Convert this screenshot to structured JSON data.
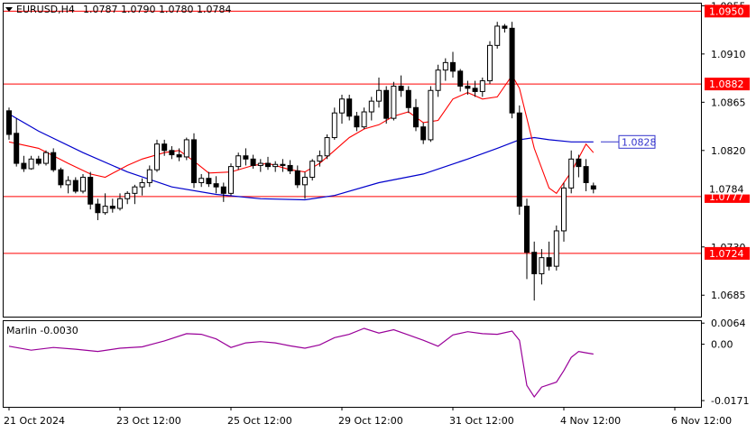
{
  "header": {
    "symbol_text": "EURUSD,H4",
    "ohlc_text": "1.0787 1.0790 1.0780 1.0784"
  },
  "colors": {
    "candle": "#000000",
    "grid_bg": "#ffffff",
    "level_line": "#ff0000",
    "fast_ma": "#ff0000",
    "slow_ma": "#0000cc",
    "oscillator": "#990099",
    "label_red_bg": "#ff0000",
    "label_blue_border": "#3333cc"
  },
  "chart_data": [
    {
      "type": "candlestick",
      "title": "EURUSD,H4",
      "subtitle": "1.0787 1.0790 1.0780 1.0784",
      "y_ticks": [
        "1.0955",
        "1.0910",
        "1.0865",
        "1.0820",
        "1.0730",
        "1.0685"
      ],
      "ylim": [
        1.0665,
        1.0957
      ],
      "x_ticks": [
        "21 Oct 2024",
        "23 Oct 12:00",
        "25 Oct 12:00",
        "29 Oct 12:00",
        "31 Oct 12:00",
        "4 Nov 12:00",
        "6 Nov 12:00"
      ],
      "x_tick_index": [
        0,
        15,
        30,
        45,
        60,
        75,
        90
      ],
      "levels": [
        {
          "value": 1.095,
          "label": "1.0950"
        },
        {
          "value": 1.0882,
          "label": "1.0882"
        },
        {
          "value": 1.0777,
          "label": "1.0777"
        },
        {
          "value": 1.0724,
          "label": "1.0724"
        }
      ],
      "ma_label": {
        "value": 1.0828,
        "label": "1.0828"
      },
      "current_price": {
        "value": 1.0784,
        "label": "1.0784"
      },
      "candles": [
        [
          1.0857,
          1.086,
          1.083,
          1.0835
        ],
        [
          1.0836,
          1.085,
          1.0805,
          1.0808
        ],
        [
          1.0808,
          1.0815,
          1.08,
          1.0803
        ],
        [
          1.0803,
          1.0815,
          1.0802,
          1.0812
        ],
        [
          1.0812,
          1.0815,
          1.0806,
          1.0808
        ],
        [
          1.0808,
          1.082,
          1.0806,
          1.0818
        ],
        [
          1.0818,
          1.0822,
          1.08,
          1.0802
        ],
        [
          1.0802,
          1.0804,
          1.0785,
          1.0788
        ],
        [
          1.0788,
          1.0796,
          1.078,
          1.0792
        ],
        [
          1.0792,
          1.0795,
          1.078,
          1.0782
        ],
        [
          1.0782,
          1.0798,
          1.078,
          1.0795
        ],
        [
          1.0795,
          1.08,
          1.0765,
          1.077
        ],
        [
          1.077,
          1.0775,
          1.0755,
          1.0762
        ],
        [
          1.0762,
          1.078,
          1.076,
          1.0768
        ],
        [
          1.0768,
          1.0775,
          1.0762,
          1.0766
        ],
        [
          1.0766,
          1.078,
          1.0764,
          1.0775
        ],
        [
          1.0775,
          1.0782,
          1.077,
          1.078
        ],
        [
          1.078,
          1.0788,
          1.077,
          1.0786
        ],
        [
          1.0786,
          1.0794,
          1.0778,
          1.079
        ],
        [
          1.079,
          1.0806,
          1.0786,
          1.0802
        ],
        [
          1.0802,
          1.083,
          1.08,
          1.0826
        ],
        [
          1.0826,
          1.083,
          1.0815,
          1.082
        ],
        [
          1.082,
          1.0824,
          1.0812,
          1.0816
        ],
        [
          1.0816,
          1.0822,
          1.081,
          1.0814
        ],
        [
          1.0814,
          1.0832,
          1.0811,
          1.083
        ],
        [
          1.083,
          1.0836,
          1.0785,
          1.079
        ],
        [
          1.079,
          1.0798,
          1.0786,
          1.0794
        ],
        [
          1.0794,
          1.08,
          1.0786,
          1.0789
        ],
        [
          1.0789,
          1.0796,
          1.078,
          1.0786
        ],
        [
          1.0786,
          1.079,
          1.0772,
          1.078
        ],
        [
          1.078,
          1.0808,
          1.0778,
          1.0805
        ],
        [
          1.0805,
          1.0818,
          1.0802,
          1.0815
        ],
        [
          1.0815,
          1.0822,
          1.0806,
          1.0812
        ],
        [
          1.0812,
          1.0816,
          1.0803,
          1.0806
        ],
        [
          1.0806,
          1.0812,
          1.08,
          1.0808
        ],
        [
          1.0808,
          1.0814,
          1.0802,
          1.0805
        ],
        [
          1.0805,
          1.081,
          1.08,
          1.0807
        ],
        [
          1.0807,
          1.0812,
          1.08,
          1.0806
        ],
        [
          1.0806,
          1.0811,
          1.0798,
          1.0801
        ],
        [
          1.0801,
          1.0806,
          1.0785,
          1.0788
        ],
        [
          1.0788,
          1.08,
          1.0775,
          1.0795
        ],
        [
          1.0795,
          1.0812,
          1.0792,
          1.081
        ],
        [
          1.081,
          1.082,
          1.0805,
          1.0815
        ],
        [
          1.0815,
          1.0835,
          1.0812,
          1.0832
        ],
        [
          1.0832,
          1.086,
          1.083,
          1.0855
        ],
        [
          1.0855,
          1.0872,
          1.0845,
          1.0868
        ],
        [
          1.0868,
          1.0872,
          1.0848,
          1.0852
        ],
        [
          1.0852,
          1.0856,
          1.0838,
          1.0842
        ],
        [
          1.0842,
          1.086,
          1.084,
          1.0856
        ],
        [
          1.0856,
          1.087,
          1.0848,
          1.0866
        ],
        [
          1.0866,
          1.0888,
          1.086,
          1.0876
        ],
        [
          1.0876,
          1.088,
          1.0845,
          1.085
        ],
        [
          1.085,
          1.0884,
          1.0848,
          1.088
        ],
        [
          1.088,
          1.089,
          1.087,
          1.0876
        ],
        [
          1.0876,
          1.088,
          1.0855,
          1.086
        ],
        [
          1.086,
          1.0868,
          1.0838,
          1.0842
        ],
        [
          1.0842,
          1.0846,
          1.0826,
          1.083
        ],
        [
          1.083,
          1.088,
          1.0828,
          1.0876
        ],
        [
          1.0876,
          1.09,
          1.087,
          1.0895
        ],
        [
          1.0895,
          1.0906,
          1.0885,
          1.0902
        ],
        [
          1.0902,
          1.0912,
          1.0888,
          1.0894
        ],
        [
          1.0894,
          1.0896,
          1.0875,
          1.088
        ],
        [
          1.088,
          1.0885,
          1.0872,
          1.0878
        ],
        [
          1.0878,
          1.0885,
          1.087,
          1.0875
        ],
        [
          1.0875,
          1.0888,
          1.087,
          1.0885
        ],
        [
          1.0885,
          1.0922,
          1.0882,
          1.0918
        ],
        [
          1.0918,
          1.094,
          1.0915,
          1.0936
        ],
        [
          1.0936,
          1.0938,
          1.093,
          1.0934
        ],
        [
          1.0934,
          1.094,
          1.085,
          1.0855
        ],
        [
          1.0855,
          1.0862,
          1.076,
          1.0768
        ],
        [
          1.0768,
          1.0775,
          1.07,
          1.0725
        ],
        [
          1.0725,
          1.0735,
          1.068,
          1.0705
        ],
        [
          1.0705,
          1.0728,
          1.0695,
          1.072
        ],
        [
          1.072,
          1.0735,
          1.0708,
          1.0712
        ],
        [
          1.0712,
          1.075,
          1.0708,
          1.0745
        ],
        [
          1.0745,
          1.079,
          1.0735,
          1.0785
        ],
        [
          1.0785,
          1.082,
          1.078,
          1.0812
        ],
        [
          1.0812,
          1.0816,
          1.0795,
          1.0805
        ],
        [
          1.0805,
          1.0812,
          1.0782,
          1.079
        ],
        [
          1.0787,
          1.079,
          1.078,
          1.0784
        ]
      ],
      "x_index_map": [
        0,
        1,
        2,
        3,
        4,
        5,
        6,
        7,
        8,
        9,
        10,
        11,
        12,
        13,
        14,
        15,
        16,
        17,
        18,
        19,
        20,
        21,
        22,
        23,
        24,
        25,
        26,
        27,
        28,
        29,
        30,
        31,
        32,
        33,
        34,
        35,
        36,
        37,
        38,
        39,
        40,
        41,
        42,
        43,
        44,
        45,
        46,
        47,
        48,
        49,
        50,
        51,
        52,
        53,
        54,
        55,
        56,
        57,
        58,
        59,
        60,
        61,
        62,
        63,
        64,
        65,
        66,
        67,
        68,
        69,
        70,
        71,
        72,
        73,
        74,
        75,
        76,
        77,
        78,
        79
      ],
      "fast_ma": [
        [
          0,
          1.0828
        ],
        [
          4,
          1.0822
        ],
        [
          8,
          1.0808
        ],
        [
          11,
          1.0798
        ],
        [
          13,
          1.0795
        ],
        [
          16,
          1.0806
        ],
        [
          18,
          1.0812
        ],
        [
          21,
          1.0818
        ],
        [
          23,
          1.082
        ],
        [
          25,
          1.081
        ],
        [
          27,
          1.0799
        ],
        [
          30,
          1.08
        ],
        [
          33,
          1.0806
        ],
        [
          35,
          1.0808
        ],
        [
          38,
          1.0802
        ],
        [
          40,
          1.08
        ],
        [
          42,
          1.0808
        ],
        [
          44,
          1.082
        ],
        [
          46,
          1.0832
        ],
        [
          48,
          1.084
        ],
        [
          50,
          1.0844
        ],
        [
          52,
          1.0852
        ],
        [
          54,
          1.0856
        ],
        [
          56,
          1.0846
        ],
        [
          58,
          1.0848
        ],
        [
          60,
          1.0868
        ],
        [
          62,
          1.0874
        ],
        [
          64,
          1.0868
        ],
        [
          66,
          1.087
        ],
        [
          68,
          1.089
        ],
        [
          69,
          1.0878
        ],
        [
          71,
          1.0822
        ],
        [
          73,
          1.0785
        ],
        [
          74,
          1.078
        ],
        [
          76,
          1.08
        ],
        [
          78,
          1.0826
        ],
        [
          79,
          1.0818
        ]
      ],
      "slow_ma": [
        [
          0,
          1.0854
        ],
        [
          4,
          1.0838
        ],
        [
          10,
          1.0818
        ],
        [
          16,
          1.08
        ],
        [
          22,
          1.0786
        ],
        [
          28,
          1.0779
        ],
        [
          34,
          1.0775
        ],
        [
          40,
          1.0774
        ],
        [
          44,
          1.0778
        ],
        [
          50,
          1.079
        ],
        [
          56,
          1.0798
        ],
        [
          62,
          1.0812
        ],
        [
          66,
          1.0822
        ],
        [
          69,
          1.083
        ],
        [
          71,
          1.0832
        ],
        [
          73,
          1.083
        ],
        [
          76,
          1.0828
        ],
        [
          79,
          1.0828
        ]
      ],
      "oscillator": {
        "label": "Marlin -0.0030",
        "ticks": [
          "0.0064",
          "0.00",
          "-0.0171"
        ],
        "ylim": [
          -0.019,
          0.007
        ],
        "values": [
          [
            0,
            -0.0006
          ],
          [
            3,
            -0.0018
          ],
          [
            6,
            -0.001
          ],
          [
            9,
            -0.0015
          ],
          [
            12,
            -0.0022
          ],
          [
            15,
            -0.0012
          ],
          [
            18,
            -0.0008
          ],
          [
            21,
            0.001
          ],
          [
            24,
            0.0032
          ],
          [
            26,
            0.003
          ],
          [
            28,
            0.0016
          ],
          [
            30,
            -0.001
          ],
          [
            32,
            0.0004
          ],
          [
            34,
            0.0008
          ],
          [
            36,
            0.0004
          ],
          [
            38,
            -0.0005
          ],
          [
            40,
            -0.0012
          ],
          [
            42,
            -0.0002
          ],
          [
            44,
            0.002
          ],
          [
            46,
            0.003
          ],
          [
            48,
            0.0048
          ],
          [
            50,
            0.0034
          ],
          [
            52,
            0.0044
          ],
          [
            54,
            0.0028
          ],
          [
            56,
            0.0012
          ],
          [
            58,
            -0.0006
          ],
          [
            60,
            0.0028
          ],
          [
            62,
            0.0038
          ],
          [
            64,
            0.0032
          ],
          [
            66,
            0.003
          ],
          [
            68,
            0.004
          ],
          [
            69,
            0.0012
          ],
          [
            70,
            -0.0125
          ],
          [
            71,
            -0.016
          ],
          [
            72,
            -0.013
          ],
          [
            74,
            -0.0115
          ],
          [
            75,
            -0.008
          ],
          [
            76,
            -0.004
          ],
          [
            77,
            -0.0022
          ],
          [
            78,
            -0.0026
          ],
          [
            79,
            -0.003
          ]
        ]
      }
    }
  ]
}
